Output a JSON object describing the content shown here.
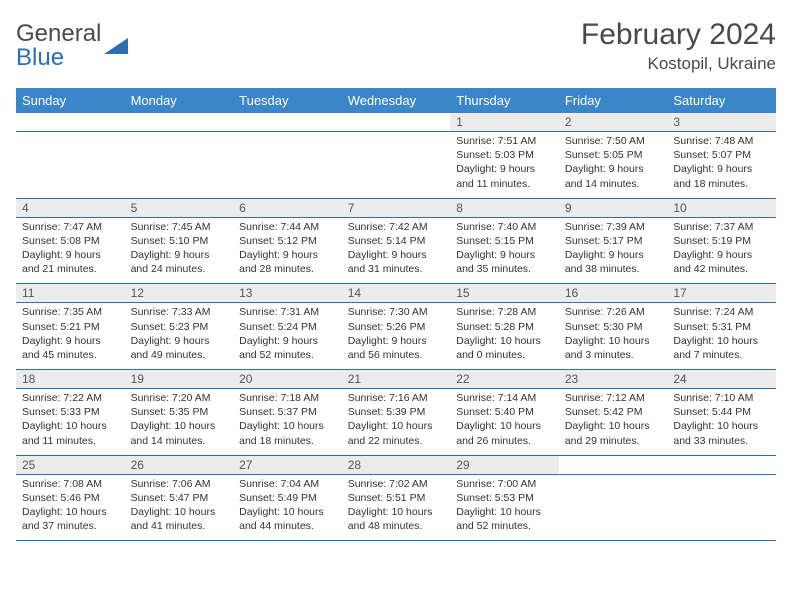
{
  "logo": {
    "line1": "General",
    "line2": "Blue",
    "triangle_color": "#2a6fb5"
  },
  "title": {
    "month": "February 2024",
    "location": "Kostopil, Ukraine"
  },
  "colors": {
    "header_bg": "#3b86c9",
    "header_text": "#ffffff",
    "daynum_bg": "#ececec",
    "border": "#2a6fb5",
    "text": "#333333"
  },
  "days_of_week": [
    "Sunday",
    "Monday",
    "Tuesday",
    "Wednesday",
    "Thursday",
    "Friday",
    "Saturday"
  ],
  "weeks": [
    [
      null,
      null,
      null,
      null,
      {
        "n": "1",
        "sr": "7:51 AM",
        "ss": "5:03 PM",
        "dl": "9 hours and 11 minutes."
      },
      {
        "n": "2",
        "sr": "7:50 AM",
        "ss": "5:05 PM",
        "dl": "9 hours and 14 minutes."
      },
      {
        "n": "3",
        "sr": "7:48 AM",
        "ss": "5:07 PM",
        "dl": "9 hours and 18 minutes."
      }
    ],
    [
      {
        "n": "4",
        "sr": "7:47 AM",
        "ss": "5:08 PM",
        "dl": "9 hours and 21 minutes."
      },
      {
        "n": "5",
        "sr": "7:45 AM",
        "ss": "5:10 PM",
        "dl": "9 hours and 24 minutes."
      },
      {
        "n": "6",
        "sr": "7:44 AM",
        "ss": "5:12 PM",
        "dl": "9 hours and 28 minutes."
      },
      {
        "n": "7",
        "sr": "7:42 AM",
        "ss": "5:14 PM",
        "dl": "9 hours and 31 minutes."
      },
      {
        "n": "8",
        "sr": "7:40 AM",
        "ss": "5:15 PM",
        "dl": "9 hours and 35 minutes."
      },
      {
        "n": "9",
        "sr": "7:39 AM",
        "ss": "5:17 PM",
        "dl": "9 hours and 38 minutes."
      },
      {
        "n": "10",
        "sr": "7:37 AM",
        "ss": "5:19 PM",
        "dl": "9 hours and 42 minutes."
      }
    ],
    [
      {
        "n": "11",
        "sr": "7:35 AM",
        "ss": "5:21 PM",
        "dl": "9 hours and 45 minutes."
      },
      {
        "n": "12",
        "sr": "7:33 AM",
        "ss": "5:23 PM",
        "dl": "9 hours and 49 minutes."
      },
      {
        "n": "13",
        "sr": "7:31 AM",
        "ss": "5:24 PM",
        "dl": "9 hours and 52 minutes."
      },
      {
        "n": "14",
        "sr": "7:30 AM",
        "ss": "5:26 PM",
        "dl": "9 hours and 56 minutes."
      },
      {
        "n": "15",
        "sr": "7:28 AM",
        "ss": "5:28 PM",
        "dl": "10 hours and 0 minutes."
      },
      {
        "n": "16",
        "sr": "7:26 AM",
        "ss": "5:30 PM",
        "dl": "10 hours and 3 minutes."
      },
      {
        "n": "17",
        "sr": "7:24 AM",
        "ss": "5:31 PM",
        "dl": "10 hours and 7 minutes."
      }
    ],
    [
      {
        "n": "18",
        "sr": "7:22 AM",
        "ss": "5:33 PM",
        "dl": "10 hours and 11 minutes."
      },
      {
        "n": "19",
        "sr": "7:20 AM",
        "ss": "5:35 PM",
        "dl": "10 hours and 14 minutes."
      },
      {
        "n": "20",
        "sr": "7:18 AM",
        "ss": "5:37 PM",
        "dl": "10 hours and 18 minutes."
      },
      {
        "n": "21",
        "sr": "7:16 AM",
        "ss": "5:39 PM",
        "dl": "10 hours and 22 minutes."
      },
      {
        "n": "22",
        "sr": "7:14 AM",
        "ss": "5:40 PM",
        "dl": "10 hours and 26 minutes."
      },
      {
        "n": "23",
        "sr": "7:12 AM",
        "ss": "5:42 PM",
        "dl": "10 hours and 29 minutes."
      },
      {
        "n": "24",
        "sr": "7:10 AM",
        "ss": "5:44 PM",
        "dl": "10 hours and 33 minutes."
      }
    ],
    [
      {
        "n": "25",
        "sr": "7:08 AM",
        "ss": "5:46 PM",
        "dl": "10 hours and 37 minutes."
      },
      {
        "n": "26",
        "sr": "7:06 AM",
        "ss": "5:47 PM",
        "dl": "10 hours and 41 minutes."
      },
      {
        "n": "27",
        "sr": "7:04 AM",
        "ss": "5:49 PM",
        "dl": "10 hours and 44 minutes."
      },
      {
        "n": "28",
        "sr": "7:02 AM",
        "ss": "5:51 PM",
        "dl": "10 hours and 48 minutes."
      },
      {
        "n": "29",
        "sr": "7:00 AM",
        "ss": "5:53 PM",
        "dl": "10 hours and 52 minutes."
      },
      null,
      null
    ]
  ],
  "labels": {
    "sunrise": "Sunrise:",
    "sunset": "Sunset:",
    "daylight": "Daylight:"
  }
}
